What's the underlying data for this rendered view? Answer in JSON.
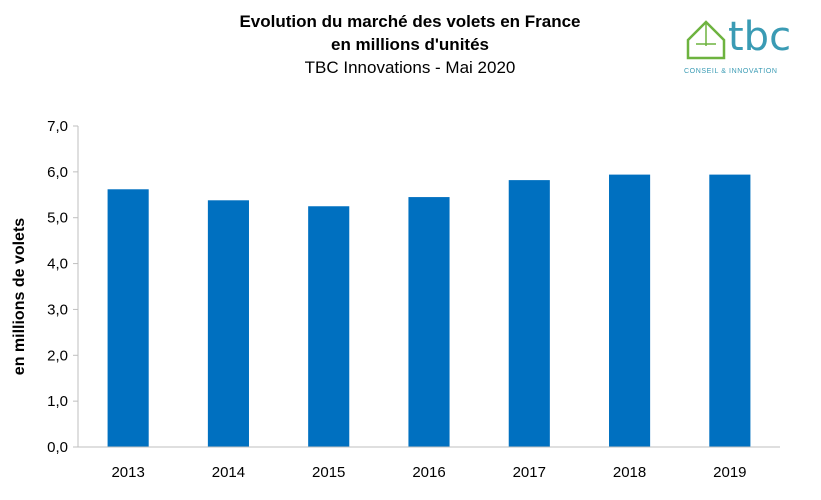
{
  "header": {
    "title_line1": "Evolution du marché des volets en France",
    "title_line2": "en millions d'unités",
    "subtitle": "TBC Innovations - Mai 2020"
  },
  "logo": {
    "text": "tbc",
    "tagline": "CONSEIL & INNOVATION",
    "icon": "house-icon",
    "color": "#3a9bb4",
    "icon_color": "#6db33f"
  },
  "chart_data": {
    "type": "bar",
    "categories": [
      "2013",
      "2014",
      "2015",
      "2016",
      "2017",
      "2018",
      "2019"
    ],
    "values": [
      5.62,
      5.38,
      5.25,
      5.45,
      5.82,
      5.94,
      5.94
    ],
    "ylabel": "en millions de volets",
    "xlabel": "",
    "ylim": [
      0,
      7
    ],
    "yticks": [
      "0,0",
      "1,0",
      "2,0",
      "3,0",
      "4,0",
      "5,0",
      "6,0",
      "7,0"
    ],
    "ytick_values": [
      0,
      1,
      2,
      3,
      4,
      5,
      6,
      7
    ],
    "bar_color": "#0070c0",
    "grid": false,
    "legend": "none"
  }
}
